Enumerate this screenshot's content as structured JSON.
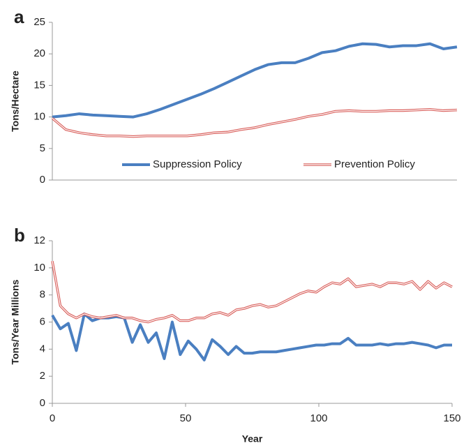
{
  "chart_data": [
    {
      "type": "line",
      "title": "a",
      "ylabel": "Tons/Hectare",
      "legend": "lower center",
      "x": [
        0,
        5,
        10,
        15,
        20,
        25,
        30,
        35,
        40,
        45,
        50,
        55,
        60,
        65,
        70,
        75,
        80,
        85,
        90,
        95,
        100,
        105,
        110,
        115,
        120,
        125,
        130,
        135,
        140,
        145,
        150
      ],
      "xlim": [
        0,
        150
      ],
      "ylim": [
        0,
        25
      ],
      "yticks": [
        0,
        5,
        10,
        15,
        20,
        25
      ],
      "series": [
        {
          "name": "Suppression Policy",
          "color": "#4a7fc1",
          "style": "solid",
          "values": [
            10,
            10.2,
            10.5,
            10.3,
            10.2,
            10.1,
            10,
            10.5,
            11.2,
            12,
            12.8,
            13.6,
            14.5,
            15.5,
            16.5,
            17.5,
            18.3,
            18.6,
            18.6,
            19.3,
            20.2,
            20.5,
            21.2,
            21.6,
            21.5,
            21.1,
            21.3,
            21.3,
            21.6,
            20.8,
            21.1
          ]
        },
        {
          "name": "Prevention Policy",
          "color": "#d9605c",
          "style": "double",
          "values": [
            9.8,
            8,
            7.5,
            7.2,
            7.0,
            7.0,
            6.9,
            7.0,
            7.0,
            7.0,
            7.0,
            7.2,
            7.5,
            7.6,
            8.0,
            8.3,
            8.8,
            9.2,
            9.6,
            10.1,
            10.4,
            10.9,
            11.0,
            10.9,
            10.9,
            11.0,
            11.0,
            11.1,
            11.2,
            11.0,
            11.1
          ]
        }
      ]
    },
    {
      "type": "line",
      "title": "b",
      "ylabel": "Tons/Year Millions",
      "xlabel": "Year",
      "x": [
        0,
        3,
        6,
        9,
        12,
        15,
        18,
        21,
        24,
        27,
        30,
        33,
        36,
        39,
        42,
        45,
        48,
        51,
        54,
        57,
        60,
        63,
        66,
        69,
        72,
        75,
        78,
        81,
        84,
        87,
        90,
        93,
        96,
        99,
        102,
        105,
        108,
        111,
        114,
        117,
        120,
        123,
        126,
        129,
        132,
        135,
        138,
        141,
        144,
        147,
        150
      ],
      "xlim": [
        0,
        150
      ],
      "xticks": [
        0,
        50,
        100,
        150
      ],
      "ylim": [
        0,
        12
      ],
      "yticks": [
        0,
        2,
        4,
        6,
        8,
        10,
        12
      ],
      "series": [
        {
          "name": "Suppression Policy",
          "color": "#4a7fc1",
          "style": "solid",
          "values": [
            6.5,
            5.5,
            5.9,
            3.9,
            6.6,
            6.1,
            6.3,
            6.3,
            6.4,
            6.3,
            4.5,
            5.8,
            4.5,
            5.2,
            3.3,
            6.0,
            3.6,
            4.6,
            4.0,
            3.2,
            4.7,
            4.2,
            3.6,
            4.2,
            3.7,
            3.7,
            3.8,
            3.8,
            3.8,
            3.9,
            4.0,
            4.1,
            4.2,
            4.3,
            4.3,
            4.4,
            4.4,
            4.8,
            4.3,
            4.3,
            4.3,
            4.4,
            4.3,
            4.4,
            4.4,
            4.5,
            4.4,
            4.3,
            4.1,
            4.3,
            4.3
          ]
        },
        {
          "name": "Prevention Policy",
          "color": "#d9605c",
          "style": "double",
          "values": [
            10.5,
            7.2,
            6.6,
            6.3,
            6.6,
            6.4,
            6.3,
            6.4,
            6.5,
            6.3,
            6.3,
            6.1,
            6.0,
            6.2,
            6.3,
            6.5,
            6.1,
            6.1,
            6.3,
            6.3,
            6.6,
            6.7,
            6.5,
            6.9,
            7.0,
            7.2,
            7.3,
            7.1,
            7.2,
            7.5,
            7.8,
            8.1,
            8.3,
            8.2,
            8.6,
            8.9,
            8.8,
            9.2,
            8.6,
            8.7,
            8.8,
            8.6,
            8.9,
            8.9,
            8.8,
            9.0,
            8.4,
            9.0,
            8.5,
            8.9,
            8.6
          ]
        }
      ]
    }
  ]
}
